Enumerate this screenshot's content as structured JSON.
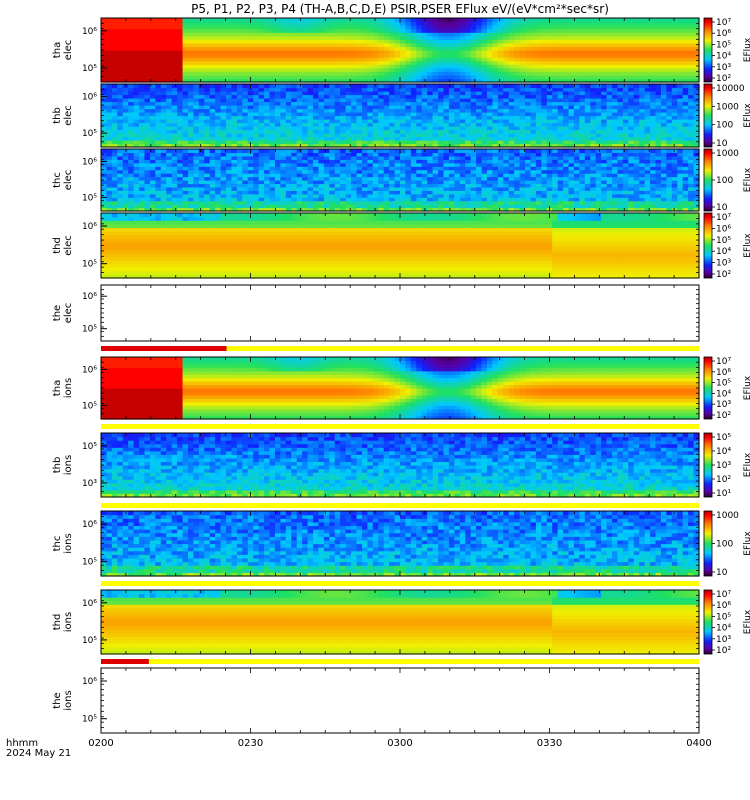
{
  "chart_data": {
    "type": "heatmap",
    "title": "P5, P1, P2, P3, P4 (TH-A,B,C,D,E) PSIR,PSER EFlux eV/(eV*cm²*sec*sr)",
    "x_ticks": [
      "0200",
      "0230",
      "0300",
      "0330",
      "0400"
    ],
    "x_label_line1": "hhmm",
    "x_label_line2": "2024 May 21",
    "colorbar_label": "EFlux",
    "panels": [
      {
        "probe": "tha",
        "species": "elec",
        "y_ticks": [
          "10⁵",
          "10⁶"
        ],
        "colorbar_ticks": [
          "10²",
          "10³",
          "10⁴",
          "10⁵",
          "10⁶",
          "10⁷"
        ],
        "pattern": "A"
      },
      {
        "probe": "thb",
        "species": "elec",
        "y_ticks": [
          "10⁵",
          "10⁶"
        ],
        "colorbar_ticks": [
          "10",
          "100",
          "1000",
          "10000"
        ],
        "pattern": "B"
      },
      {
        "probe": "thc",
        "species": "elec",
        "y_ticks": [
          "10⁵",
          "10⁶"
        ],
        "colorbar_ticks": [
          "10",
          "100",
          "1000"
        ],
        "pattern": "C"
      },
      {
        "probe": "thd",
        "species": "elec",
        "y_ticks": [
          "10⁵",
          "10⁶"
        ],
        "colorbar_ticks": [
          "10²",
          "10³",
          "10⁴",
          "10⁵",
          "10⁶",
          "10⁷"
        ],
        "pattern": "D"
      },
      {
        "probe": "the",
        "species": "elec",
        "y_ticks": [
          "10⁵",
          "10⁶"
        ],
        "colorbar_ticks": [],
        "pattern": "E",
        "status_bar": {
          "red_fraction": 0.21
        }
      },
      {
        "probe": "tha",
        "species": "ions",
        "y_ticks": [
          "10⁵",
          "10⁶"
        ],
        "colorbar_ticks": [
          "10²",
          "10³",
          "10⁴",
          "10⁵",
          "10⁶",
          "10⁷"
        ],
        "pattern": "A",
        "status_bar": {
          "red_fraction": 0
        }
      },
      {
        "probe": "thb",
        "species": "ions",
        "y_ticks": [
          "10³",
          "10⁵"
        ],
        "colorbar_ticks": [
          "10¹",
          "10²",
          "10³",
          "10⁴",
          "10⁵"
        ],
        "pattern": "B",
        "status_bar": {
          "red_fraction": 0
        }
      },
      {
        "probe": "thc",
        "species": "ions",
        "y_ticks": [
          "10⁵",
          "10⁶"
        ],
        "colorbar_ticks": [
          "10",
          "100",
          "1000"
        ],
        "pattern": "C",
        "status_bar": {
          "red_fraction": 0
        }
      },
      {
        "probe": "thd",
        "species": "ions",
        "y_ticks": [
          "10⁵",
          "10⁶"
        ],
        "colorbar_ticks": [
          "10²",
          "10³",
          "10⁴",
          "10⁵",
          "10⁶",
          "10⁷"
        ],
        "pattern": "D",
        "status_bar": {
          "red_fraction": 0.08
        }
      },
      {
        "probe": "the",
        "species": "ions",
        "y_ticks": [
          "10⁵",
          "10⁶"
        ],
        "colorbar_ticks": [],
        "pattern": "E"
      }
    ],
    "grid": false
  }
}
